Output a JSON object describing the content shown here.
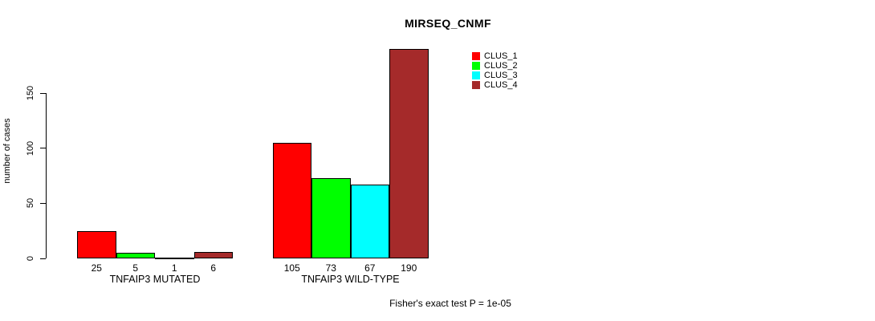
{
  "chart_data": {
    "type": "bar",
    "title": "MIRSEQ_CNMF",
    "xlabel": "",
    "ylabel": "number of cases",
    "ylim": [
      0,
      190
    ],
    "yticks": [
      0,
      50,
      100,
      150
    ],
    "grid": false,
    "legend_position": "top-right",
    "show_bar_value_labels": true,
    "categories": [
      "TNFAIP3 MUTATED",
      "TNFAIP3 WILD-TYPE"
    ],
    "series": [
      {
        "name": "CLUS_1",
        "color": "#FF0000",
        "values": [
          25,
          105
        ]
      },
      {
        "name": "CLUS_2",
        "color": "#00FF00",
        "values": [
          5,
          73
        ]
      },
      {
        "name": "CLUS_3",
        "color": "#00FFFF",
        "values": [
          1,
          67
        ]
      },
      {
        "name": "CLUS_4",
        "color": "#A52A2A",
        "values": [
          6,
          190
        ]
      }
    ],
    "annotation": "Fisher's exact test P = 1e-05"
  },
  "colors": {
    "axis": "#000000",
    "bar_border": "#000000",
    "background": "#FFFFFF"
  }
}
